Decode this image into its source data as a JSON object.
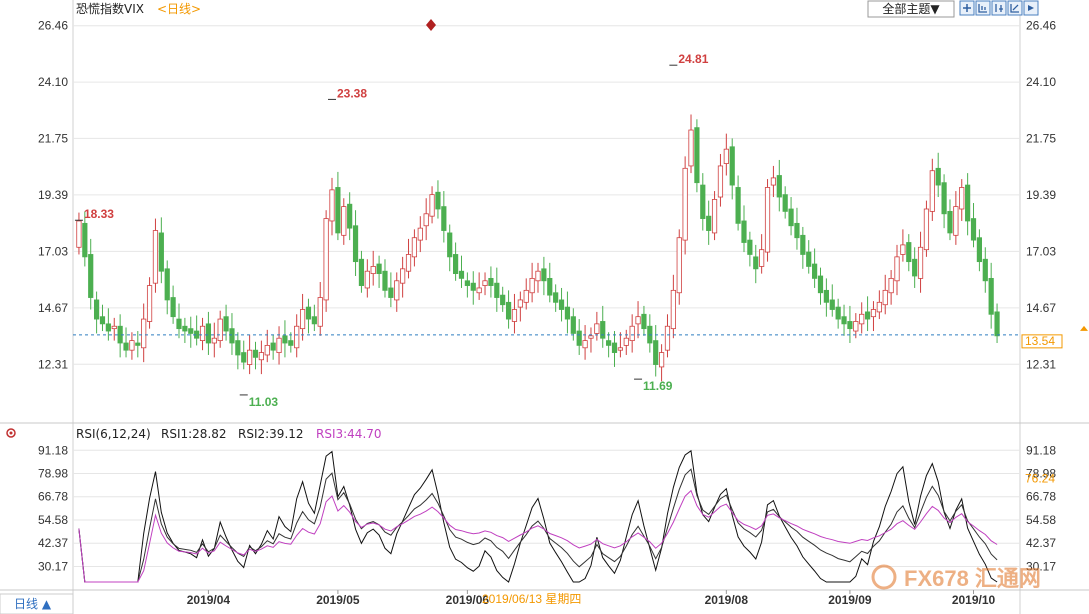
{
  "title": "恐慌指数VIX",
  "period_tag": "<日线>",
  "theme_button": "全部主题▼",
  "toolbar_icons": [
    "zoom-in-icon",
    "panel-icon",
    "candles-icon",
    "crosshair-icon",
    "expand-icon"
  ],
  "colors": {
    "up": "#d04040",
    "down": "#4caf50",
    "grid": "#e6e6e6",
    "price_line": "#2f7ec0",
    "rsi1": "#111111",
    "rsi2": "#333333",
    "rsi3": "#c040c0",
    "accent": "#f39800"
  },
  "chart_data": [
    {
      "type": "candlestick",
      "y_ticks": [
        26.46,
        24.1,
        21.75,
        19.39,
        17.03,
        14.67,
        12.31
      ],
      "ylim": [
        10.4,
        27.2
      ],
      "x_ticks": [
        "2019/04",
        "2019/05",
        "2019/06",
        "2019/08",
        "2019/09",
        "2019/10"
      ],
      "x_tick_index": [
        22,
        44,
        66,
        110,
        131,
        152
      ],
      "last_price": "13.54",
      "annotations": [
        {
          "text": "18.33",
          "index": 0,
          "value": 18.33,
          "kind": "high"
        },
        {
          "text": "11.03",
          "index": 28,
          "value": 11.03,
          "kind": "low"
        },
        {
          "text": "23.38",
          "index": 43,
          "value": 23.38,
          "kind": "high"
        },
        {
          "text": "24.81",
          "index": 101,
          "value": 24.81,
          "kind": "high"
        },
        {
          "text": "11.69",
          "index": 95,
          "value": 11.69,
          "kind": "low"
        }
      ],
      "closes": [
        18.3,
        16.8,
        15.1,
        14.2,
        14.0,
        13.7,
        13.9,
        13.2,
        12.9,
        13.3,
        13.1,
        14.2,
        15.6,
        17.9,
        16.2,
        15.0,
        14.3,
        13.8,
        13.7,
        13.6,
        13.4,
        13.9,
        13.2,
        13.4,
        14.2,
        13.7,
        13.2,
        12.7,
        12.4,
        12.9,
        12.6,
        12.8,
        13.1,
        12.9,
        13.4,
        13.2,
        13.1,
        13.9,
        14.6,
        14.2,
        14.0,
        15.1,
        18.4,
        19.6,
        17.8,
        18.9,
        18.0,
        16.6,
        15.6,
        16.2,
        16.4,
        16.1,
        15.4,
        15.1,
        15.8,
        16.3,
        16.9,
        17.6,
        18.0,
        18.6,
        19.4,
        18.8,
        17.9,
        16.8,
        16.1,
        15.9,
        15.6,
        15.4,
        15.5,
        15.8,
        15.6,
        15.1,
        14.8,
        14.2,
        14.6,
        15.0,
        15.4,
        15.9,
        16.2,
        15.8,
        15.2,
        14.9,
        14.6,
        14.2,
        13.6,
        13.1,
        13.3,
        13.5,
        14.0,
        13.4,
        13.1,
        12.8,
        13.0,
        13.4,
        13.9,
        14.3,
        13.8,
        13.2,
        12.3,
        12.8,
        13.9,
        15.4,
        17.6,
        20.5,
        22.1,
        19.9,
        18.4,
        17.9,
        19.2,
        20.6,
        21.3,
        19.8,
        18.2,
        17.4,
        16.9,
        16.3,
        17.1,
        19.7,
        20.1,
        19.3,
        18.7,
        18.1,
        17.6,
        16.9,
        16.4,
        15.9,
        15.3,
        14.9,
        14.6,
        14.2,
        14.0,
        13.8,
        14.1,
        14.4,
        14.2,
        14.6,
        14.9,
        15.4,
        15.9,
        16.8,
        17.3,
        16.6,
        16.0,
        17.2,
        18.8,
        20.4,
        19.8,
        18.6,
        17.8,
        18.9,
        19.7,
        18.3,
        17.5,
        16.6,
        15.8,
        14.4,
        13.5
      ],
      "opens": [
        17.2,
        18.2,
        16.9,
        15.0,
        14.3,
        14.0,
        13.8,
        13.9,
        13.2,
        12.9,
        13.2,
        13.0,
        14.1,
        15.7,
        17.8,
        16.3,
        15.1,
        14.2,
        13.9,
        13.8,
        13.7,
        13.3,
        14.0,
        13.2,
        13.3,
        14.3,
        13.8,
        13.3,
        12.8,
        12.3,
        12.9,
        12.5,
        12.7,
        13.2,
        12.8,
        13.5,
        13.3,
        13.0,
        13.8,
        14.7,
        14.3,
        13.9,
        15.0,
        18.3,
        19.7,
        17.7,
        19.0,
        18.1,
        16.7,
        15.5,
        16.1,
        16.5,
        16.2,
        15.5,
        15.0,
        15.7,
        16.2,
        16.8,
        17.5,
        18.1,
        18.5,
        19.5,
        18.9,
        17.8,
        16.9,
        16.2,
        15.8,
        15.7,
        15.3,
        15.6,
        15.9,
        15.7,
        15.2,
        14.9,
        14.1,
        14.7,
        14.9,
        15.3,
        15.8,
        16.3,
        15.9,
        15.3,
        15.0,
        14.7,
        14.3,
        13.7,
        13.0,
        13.4,
        13.6,
        14.1,
        13.3,
        13.2,
        12.9,
        13.1,
        13.3,
        14.0,
        14.4,
        13.9,
        13.3,
        12.2,
        12.9,
        13.8,
        15.3,
        17.5,
        20.6,
        22.2,
        19.8,
        18.5,
        17.8,
        19.3,
        20.7,
        21.4,
        19.7,
        18.3,
        17.5,
        16.8,
        16.4,
        17.0,
        19.8,
        20.2,
        19.4,
        18.8,
        18.2,
        17.7,
        17.0,
        16.5,
        16.0,
        15.4,
        15.0,
        14.7,
        14.3,
        14.1,
        13.7,
        14.0,
        14.5,
        14.3,
        14.5,
        14.8,
        15.3,
        15.8,
        16.9,
        17.4,
        16.7,
        15.9,
        17.1,
        18.7,
        20.5,
        19.9,
        18.7,
        17.7,
        18.8,
        19.8,
        18.4,
        17.6,
        16.7,
        15.9,
        14.5
      ],
      "rsi_label": "RSI(6,12,24)",
      "rsi1_label": "RSI1:28.82",
      "rsi2_label": "RSI2:39.12",
      "rsi3_label": "RSI3:44.70",
      "rsi_ticks": [
        91.18,
        78.98,
        66.78,
        54.58,
        42.37,
        30.17
      ],
      "rsi_ylim": [
        22,
        95
      ],
      "rsi_marker": "76.24",
      "date_cursor": "2019/06/13 星期四"
    }
  ],
  "footer_tab": "日线 ▲",
  "watermark": "FX678 汇通网"
}
